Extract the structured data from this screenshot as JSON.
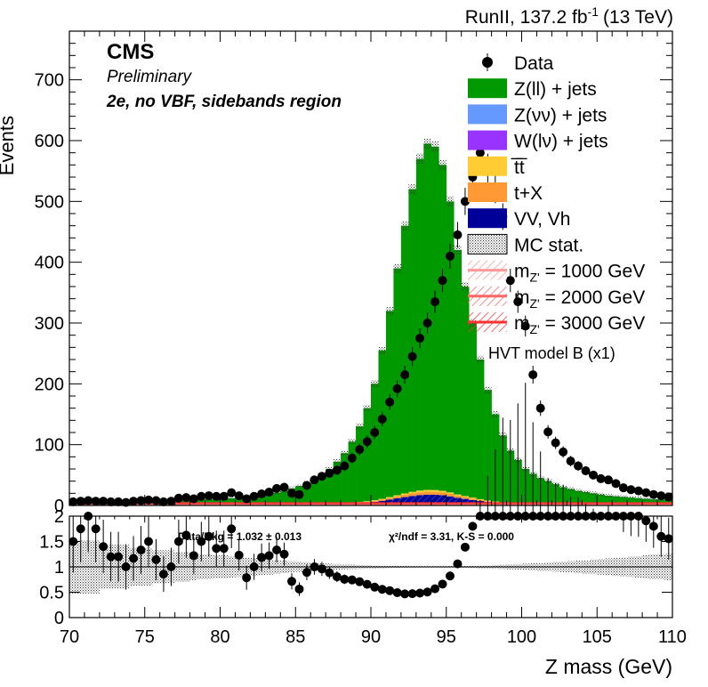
{
  "header": {
    "lumi_prefix": "RunII, 137.2 fb",
    "lumi_sup": "-1",
    "lumi_suffix": "(13 TeV)"
  },
  "labels": {
    "cms": "CMS",
    "preliminary": "Preliminary",
    "region": "2e, no VBF, sidebands region",
    "hvt": "HVT model B (x1)",
    "ratio_stats": "Data/Bkg = 1.032  ± 0.013",
    "ratio_fit": "χ²/ndf = 3.31,   K-S = 0.000"
  },
  "legend": [
    {
      "key": "data",
      "label": "Data",
      "style": "marker"
    },
    {
      "key": "zll",
      "label": "Z(ll) + jets",
      "style": "box",
      "color": "#009900"
    },
    {
      "key": "znn",
      "label": "Z(νν) + jets",
      "style": "box",
      "color": "#6699ff"
    },
    {
      "key": "wln",
      "label": "W(lν) + jets",
      "style": "box",
      "color": "#9933ff"
    },
    {
      "key": "tt",
      "label": "t̅t̅",
      "style": "box",
      "color": "#ffcc33"
    },
    {
      "key": "tx",
      "label": "t+X",
      "style": "box",
      "color": "#ff9933"
    },
    {
      "key": "vv",
      "label": "VV, Vh",
      "style": "box",
      "color": "#000099"
    },
    {
      "key": "mcstat",
      "label": "MC stat.",
      "style": "dots"
    },
    {
      "key": "z1000",
      "label_prefix": "m",
      "label_sub": "Z'",
      "label_suffix": " = 1000 GeV",
      "style": "hatch",
      "color": "#ff9999"
    },
    {
      "key": "z2000",
      "label_prefix": "m",
      "label_sub": "Z'",
      "label_suffix": " = 2000 GeV",
      "style": "hatch",
      "color": "#ff6666"
    },
    {
      "key": "z3000",
      "label_prefix": "m",
      "label_sub": "Z'",
      "label_suffix": " = 3000 GeV",
      "style": "hatch",
      "color": "#ff3333"
    }
  ],
  "chart_data": {
    "type": "bar",
    "xlabel": "Z mass (GeV)",
    "ylabel": "Events",
    "xlim": [
      70,
      110
    ],
    "ylim": [
      0,
      780
    ],
    "ratio_ylim": [
      0,
      2
    ],
    "x_ticks": [
      70,
      75,
      80,
      85,
      90,
      95,
      100,
      105,
      110
    ],
    "y_ticks": [
      0,
      100,
      200,
      300,
      400,
      500,
      600,
      700
    ],
    "ratio_ticks": [
      0,
      0.5,
      1,
      1.5,
      2
    ],
    "bin_edges_start": 70,
    "bin_width": 0.5,
    "bins": 80,
    "total_mc": [
      4,
      4,
      4,
      4,
      5,
      5,
      5,
      5,
      6,
      6,
      6,
      7,
      7,
      7,
      8,
      8,
      9,
      10,
      10,
      11,
      11,
      12,
      13,
      14,
      15,
      16,
      18,
      21,
      24,
      28,
      32,
      37,
      42,
      50,
      60,
      72,
      86,
      105,
      130,
      160,
      200,
      255,
      320,
      390,
      460,
      520,
      570,
      595,
      590,
      560,
      500,
      420,
      360,
      300,
      240,
      190,
      150,
      115,
      90,
      75,
      60,
      52,
      45,
      40,
      35,
      30,
      27,
      24,
      22,
      20,
      18,
      16,
      15,
      14,
      13,
      12,
      11,
      10,
      10,
      9
    ],
    "vv_frac": 0.03,
    "tx_frac": 0.008,
    "tt_frac": 0.005,
    "data": [
      6,
      7,
      8,
      7,
      7,
      6,
      6,
      5,
      7,
      8,
      9,
      8,
      6,
      7,
      12,
      13,
      11,
      15,
      16,
      15,
      15,
      21,
      16,
      11,
      15,
      19,
      22,
      28,
      30,
      20,
      18,
      33,
      42,
      48,
      53,
      58,
      65,
      78,
      92,
      105,
      120,
      142,
      170,
      192,
      215,
      245,
      275,
      300,
      335,
      370,
      410,
      445,
      500,
      540,
      580,
      555,
      520,
      475,
      370,
      335,
      295,
      215,
      160,
      121,
      103,
      88,
      73,
      65,
      57,
      50,
      44,
      42,
      36,
      29,
      26,
      24,
      21,
      18,
      16,
      14
    ],
    "data_err": "sqrt"
  }
}
